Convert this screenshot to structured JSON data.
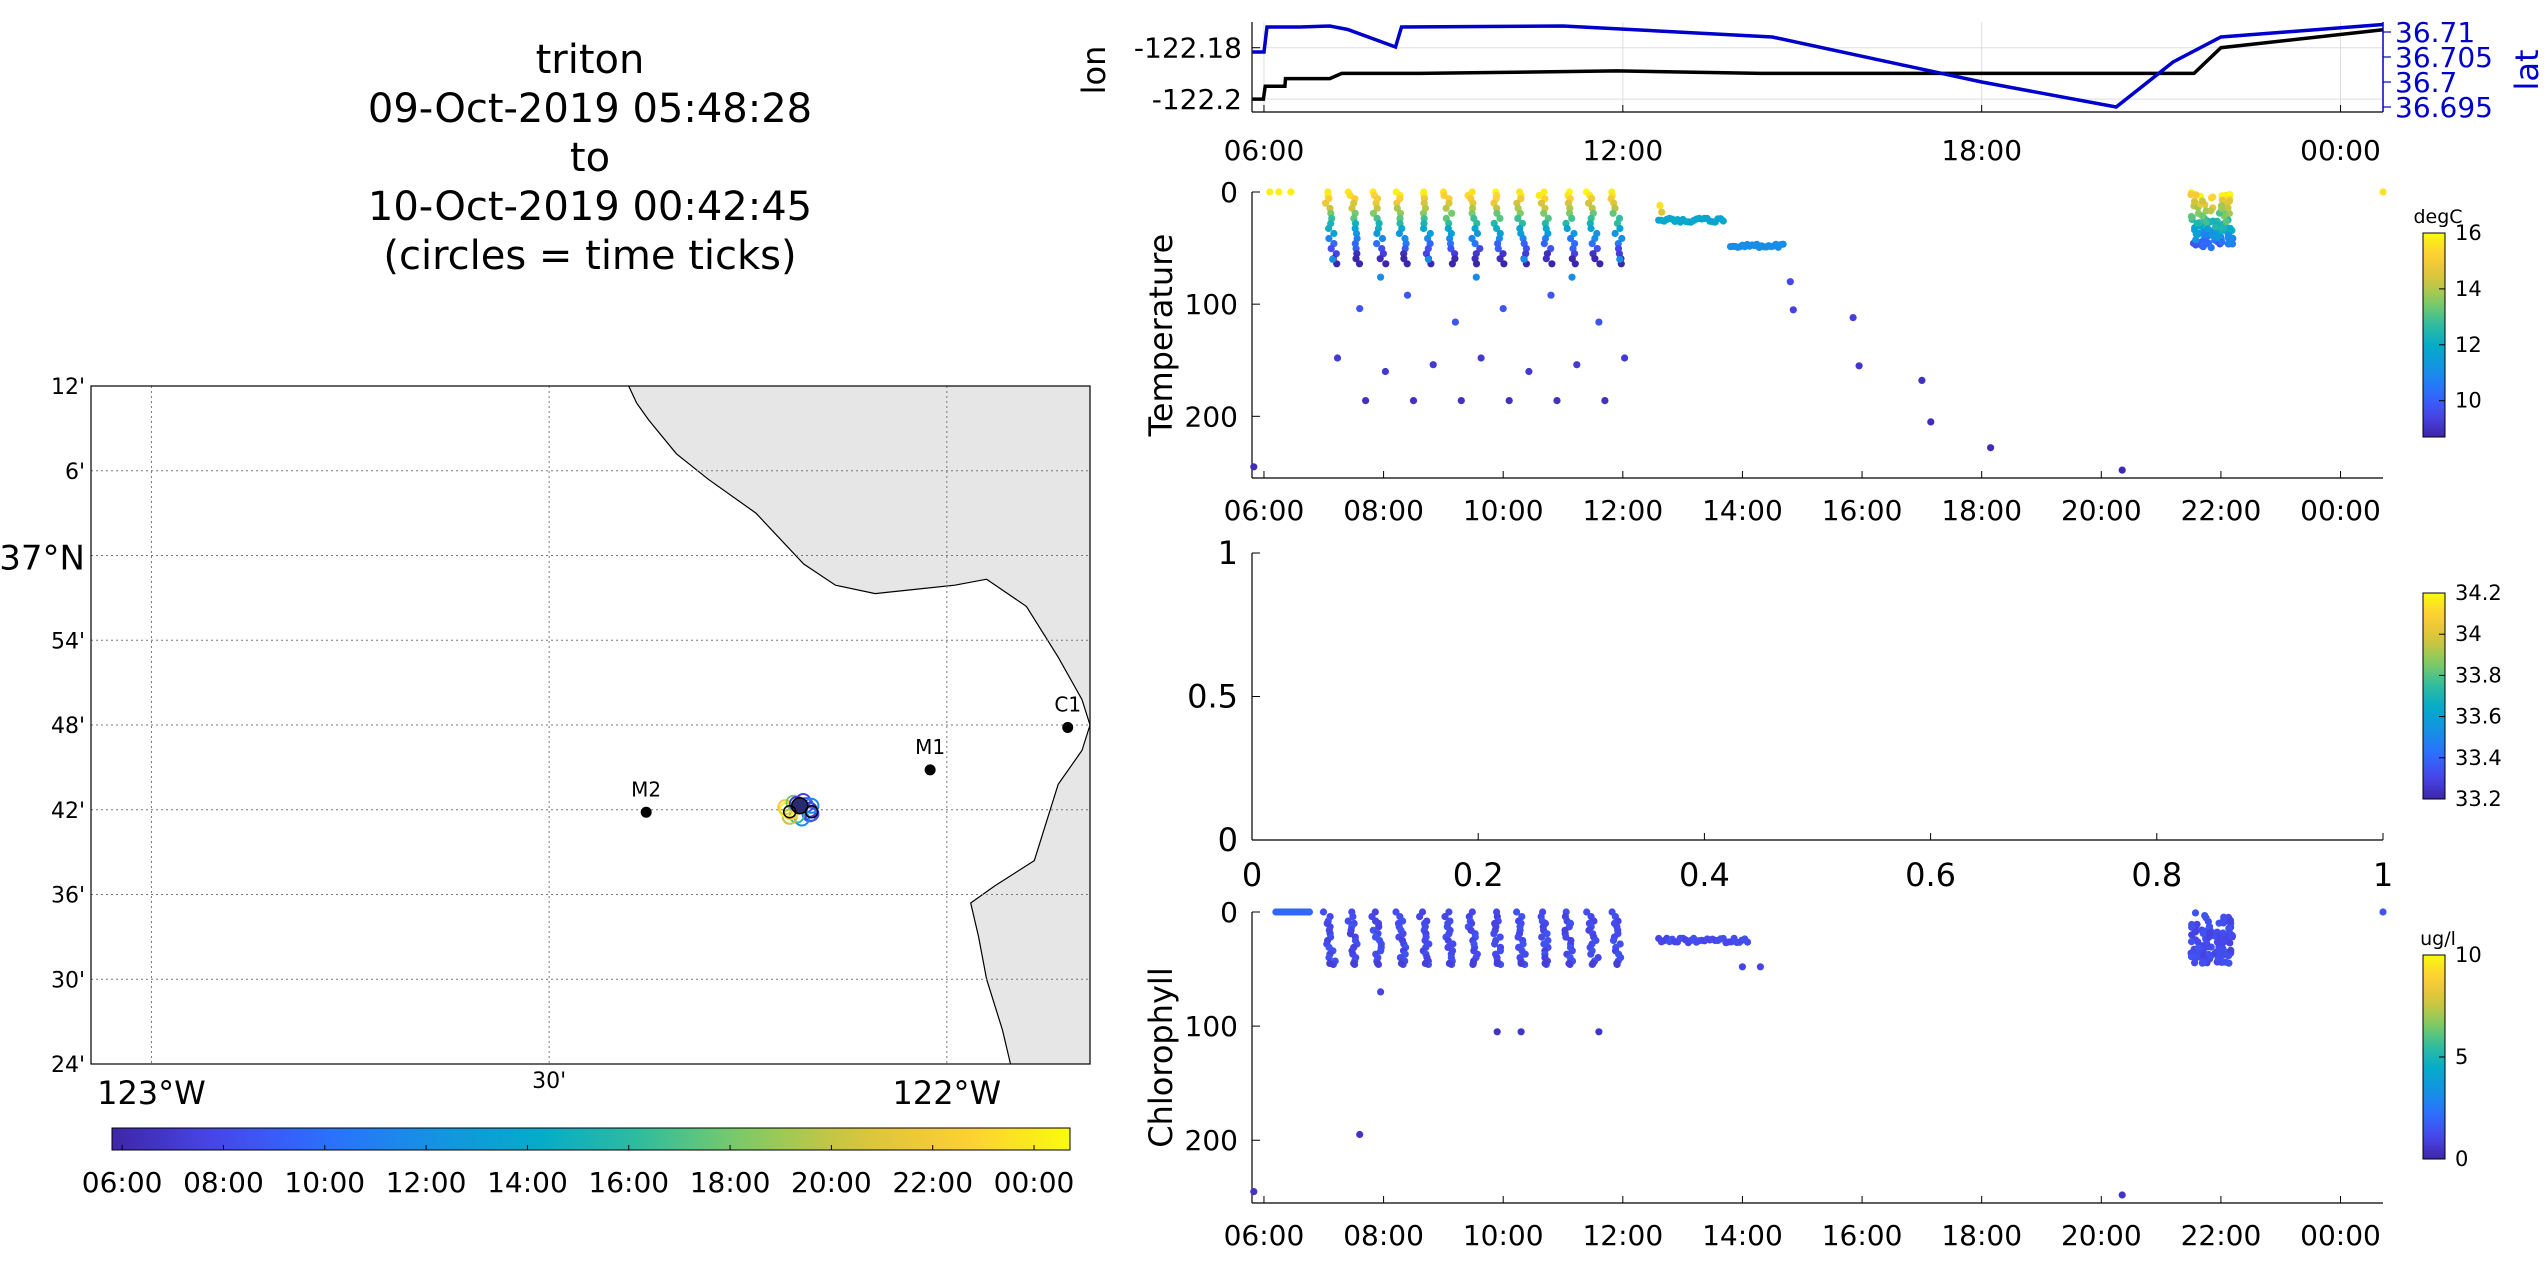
{
  "title": {
    "vehicle": "triton",
    "start": "09-Oct-2019 05:48:28",
    "to": "to",
    "end": "10-Oct-2019 00:42:45",
    "note": "(circles = time ticks)"
  },
  "map": {
    "lat_labels": [
      "12'",
      "6'",
      "37°N",
      "54'",
      "48'",
      "42'",
      "36'",
      "30'",
      "24'"
    ],
    "lon_labels": [
      "123°W",
      "30'",
      "122°W"
    ],
    "stations": [
      {
        "name": "M2",
        "lon": -122.378,
        "lat": 36.697
      },
      {
        "name": "M1",
        "lon": -122.021,
        "lat": 36.747
      },
      {
        "name": "C1",
        "lon": -121.848,
        "lat": 36.797
      }
    ],
    "vehicle_position": {
      "lon": -122.185,
      "lat": 36.7
    },
    "time_colorbar_labels": [
      "06:00",
      "08:00",
      "10:00",
      "12:00",
      "14:00",
      "16:00",
      "18:00",
      "20:00",
      "22:00",
      "00:00"
    ],
    "colors": {
      "land": "#e6e6e6",
      "ocean": "#ffffff"
    }
  },
  "chart_data": [
    {
      "type": "line",
      "name": "position",
      "ylabel_left": "lon",
      "ylabel_right": "lat",
      "x_ticks": [
        "06:00",
        "12:00",
        "18:00",
        "00:00"
      ],
      "left_ticks": [
        "-122.18",
        "-122.2"
      ],
      "right_ticks": [
        "36.71",
        "36.705",
        "36.7",
        "36.695"
      ],
      "ylim_left": [
        -122.205,
        -122.17
      ],
      "ylim_right": [
        36.694,
        36.712
      ],
      "xlim_hours": [
        5.8,
        24.71
      ],
      "series": [
        {
          "axis": "left",
          "color": "#000000",
          "x": [
            5.81,
            5.99,
            6.02,
            6.35,
            6.36,
            7.1,
            7.3,
            8.6,
            11.9,
            14.3,
            18.2,
            20.2,
            21.55,
            22.0,
            24.71
          ],
          "y": [
            -122.2,
            -122.2,
            -122.195,
            -122.195,
            -122.192,
            -122.192,
            -122.19,
            -122.19,
            -122.189,
            -122.19,
            -122.19,
            -122.19,
            -122.19,
            -122.18,
            -122.173
          ]
        },
        {
          "axis": "right",
          "color": "#0000cc",
          "x": [
            5.81,
            6.0,
            6.05,
            6.6,
            7.1,
            7.4,
            8.2,
            8.3,
            11.0,
            14.5,
            18.0,
            20.25,
            21.2,
            22.0,
            24.71
          ],
          "y": [
            36.706,
            36.706,
            36.711,
            36.711,
            36.7112,
            36.7105,
            36.707,
            36.711,
            36.7112,
            36.709,
            36.7,
            36.695,
            36.704,
            36.709,
            36.7115
          ]
        }
      ]
    },
    {
      "type": "scatter",
      "name": "temperature",
      "ylabel": "Temperature",
      "x_ticks": [
        "06:00",
        "08:00",
        "10:00",
        "12:00",
        "14:00",
        "16:00",
        "18:00",
        "20:00",
        "22:00",
        "00:00"
      ],
      "y_ticks": [
        "0",
        "100",
        "200"
      ],
      "ylim": [
        0,
        255
      ],
      "xlim_hours": [
        5.8,
        24.71
      ],
      "colorbar": {
        "unit": "degC",
        "ticks": [
          "16",
          "14",
          "12",
          "10"
        ],
        "range": [
          8.7,
          16
        ]
      },
      "profiles_hours": [
        7.05,
        7.45,
        7.85,
        8.25,
        8.65,
        9.05,
        9.45,
        9.85,
        10.25,
        10.65,
        11.05,
        11.45,
        11.85
      ],
      "isolated_points": [
        {
          "x": 5.83,
          "depth": 245,
          "value": 8.9
        },
        {
          "x": 6.1,
          "depth": 0,
          "value": 15.8
        },
        {
          "x": 6.25,
          "depth": 0,
          "value": 15.8
        },
        {
          "x": 6.45,
          "depth": 0,
          "value": 15.8
        },
        {
          "x": 14.8,
          "depth": 80,
          "value": 9.5
        },
        {
          "x": 14.85,
          "depth": 105,
          "value": 9.4
        },
        {
          "x": 15.85,
          "depth": 112,
          "value": 9.3
        },
        {
          "x": 15.95,
          "depth": 155,
          "value": 9.1
        },
        {
          "x": 17.0,
          "depth": 168,
          "value": 9.0
        },
        {
          "x": 17.15,
          "depth": 205,
          "value": 8.9
        },
        {
          "x": 18.15,
          "depth": 228,
          "value": 8.9
        },
        {
          "x": 20.35,
          "depth": 248,
          "value": 8.8
        },
        {
          "x": 24.71,
          "depth": 0,
          "value": 15.5
        }
      ],
      "yo_segment": {
        "x": [
          12.6,
          13.7
        ],
        "depth": 25,
        "value": 11.8
      },
      "drift_segment": {
        "x": [
          13.8,
          14.7
        ],
        "depth": 48,
        "value": 11.0
      },
      "burst": {
        "x": [
          21.5,
          22.2
        ],
        "depth": [
          0,
          50
        ]
      }
    },
    {
      "type": "scatter",
      "name": "salinity",
      "ylabel": "",
      "x_ticks": [
        "0",
        "0.2",
        "0.4",
        "0.6",
        "0.8",
        "1"
      ],
      "y_ticks": [
        "0",
        "0.5",
        "1"
      ],
      "xlim": [
        0,
        1
      ],
      "ylim": [
        0,
        1
      ],
      "colorbar": {
        "unit": "",
        "ticks": [
          "34.2",
          "34",
          "33.8",
          "33.6",
          "33.4",
          "33.2"
        ],
        "range": [
          33.2,
          34.2
        ]
      }
    },
    {
      "type": "scatter",
      "name": "chlorophyll",
      "ylabel": "Chlorophyll",
      "x_ticks": [
        "06:00",
        "08:00",
        "10:00",
        "12:00",
        "14:00",
        "16:00",
        "18:00",
        "20:00",
        "22:00",
        "00:00"
      ],
      "y_ticks": [
        "0",
        "100",
        "200"
      ],
      "ylim": [
        0,
        255
      ],
      "xlim_hours": [
        5.8,
        24.71
      ],
      "colorbar": {
        "unit": "ug/l",
        "ticks": [
          "10",
          "5",
          "0"
        ],
        "range": [
          0,
          10
        ]
      },
      "profiles_hours": [
        7.05,
        7.45,
        7.85,
        8.25,
        8.65,
        9.05,
        9.45,
        9.85,
        10.25,
        10.65,
        11.05,
        11.45,
        11.85
      ],
      "isolated_points": [
        {
          "x": 5.83,
          "depth": 245,
          "value": 0.5
        },
        {
          "x": 7.6,
          "depth": 195,
          "value": 0.5
        },
        {
          "x": 7.95,
          "depth": 70,
          "value": 1.0
        },
        {
          "x": 9.9,
          "depth": 105,
          "value": 0.5
        },
        {
          "x": 10.3,
          "depth": 105,
          "value": 0.5
        },
        {
          "x": 11.6,
          "depth": 105,
          "value": 0.5
        },
        {
          "x": 20.35,
          "depth": 248,
          "value": 0.5
        },
        {
          "x": 24.71,
          "depth": 0,
          "value": 1.5
        }
      ],
      "near_surface_run": {
        "x": [
          6.2,
          6.8
        ],
        "depth": 0,
        "value": 2.0
      },
      "yo_segment": {
        "x": [
          12.6,
          14.1
        ],
        "depth": 25,
        "value": 1.2
      },
      "tail_points": [
        {
          "x": 14.0,
          "depth": 48,
          "value": 1.0
        },
        {
          "x": 14.3,
          "depth": 48,
          "value": 1.0
        }
      ],
      "burst": {
        "x": [
          21.5,
          22.2
        ],
        "depth": [
          0,
          45
        ]
      }
    }
  ]
}
